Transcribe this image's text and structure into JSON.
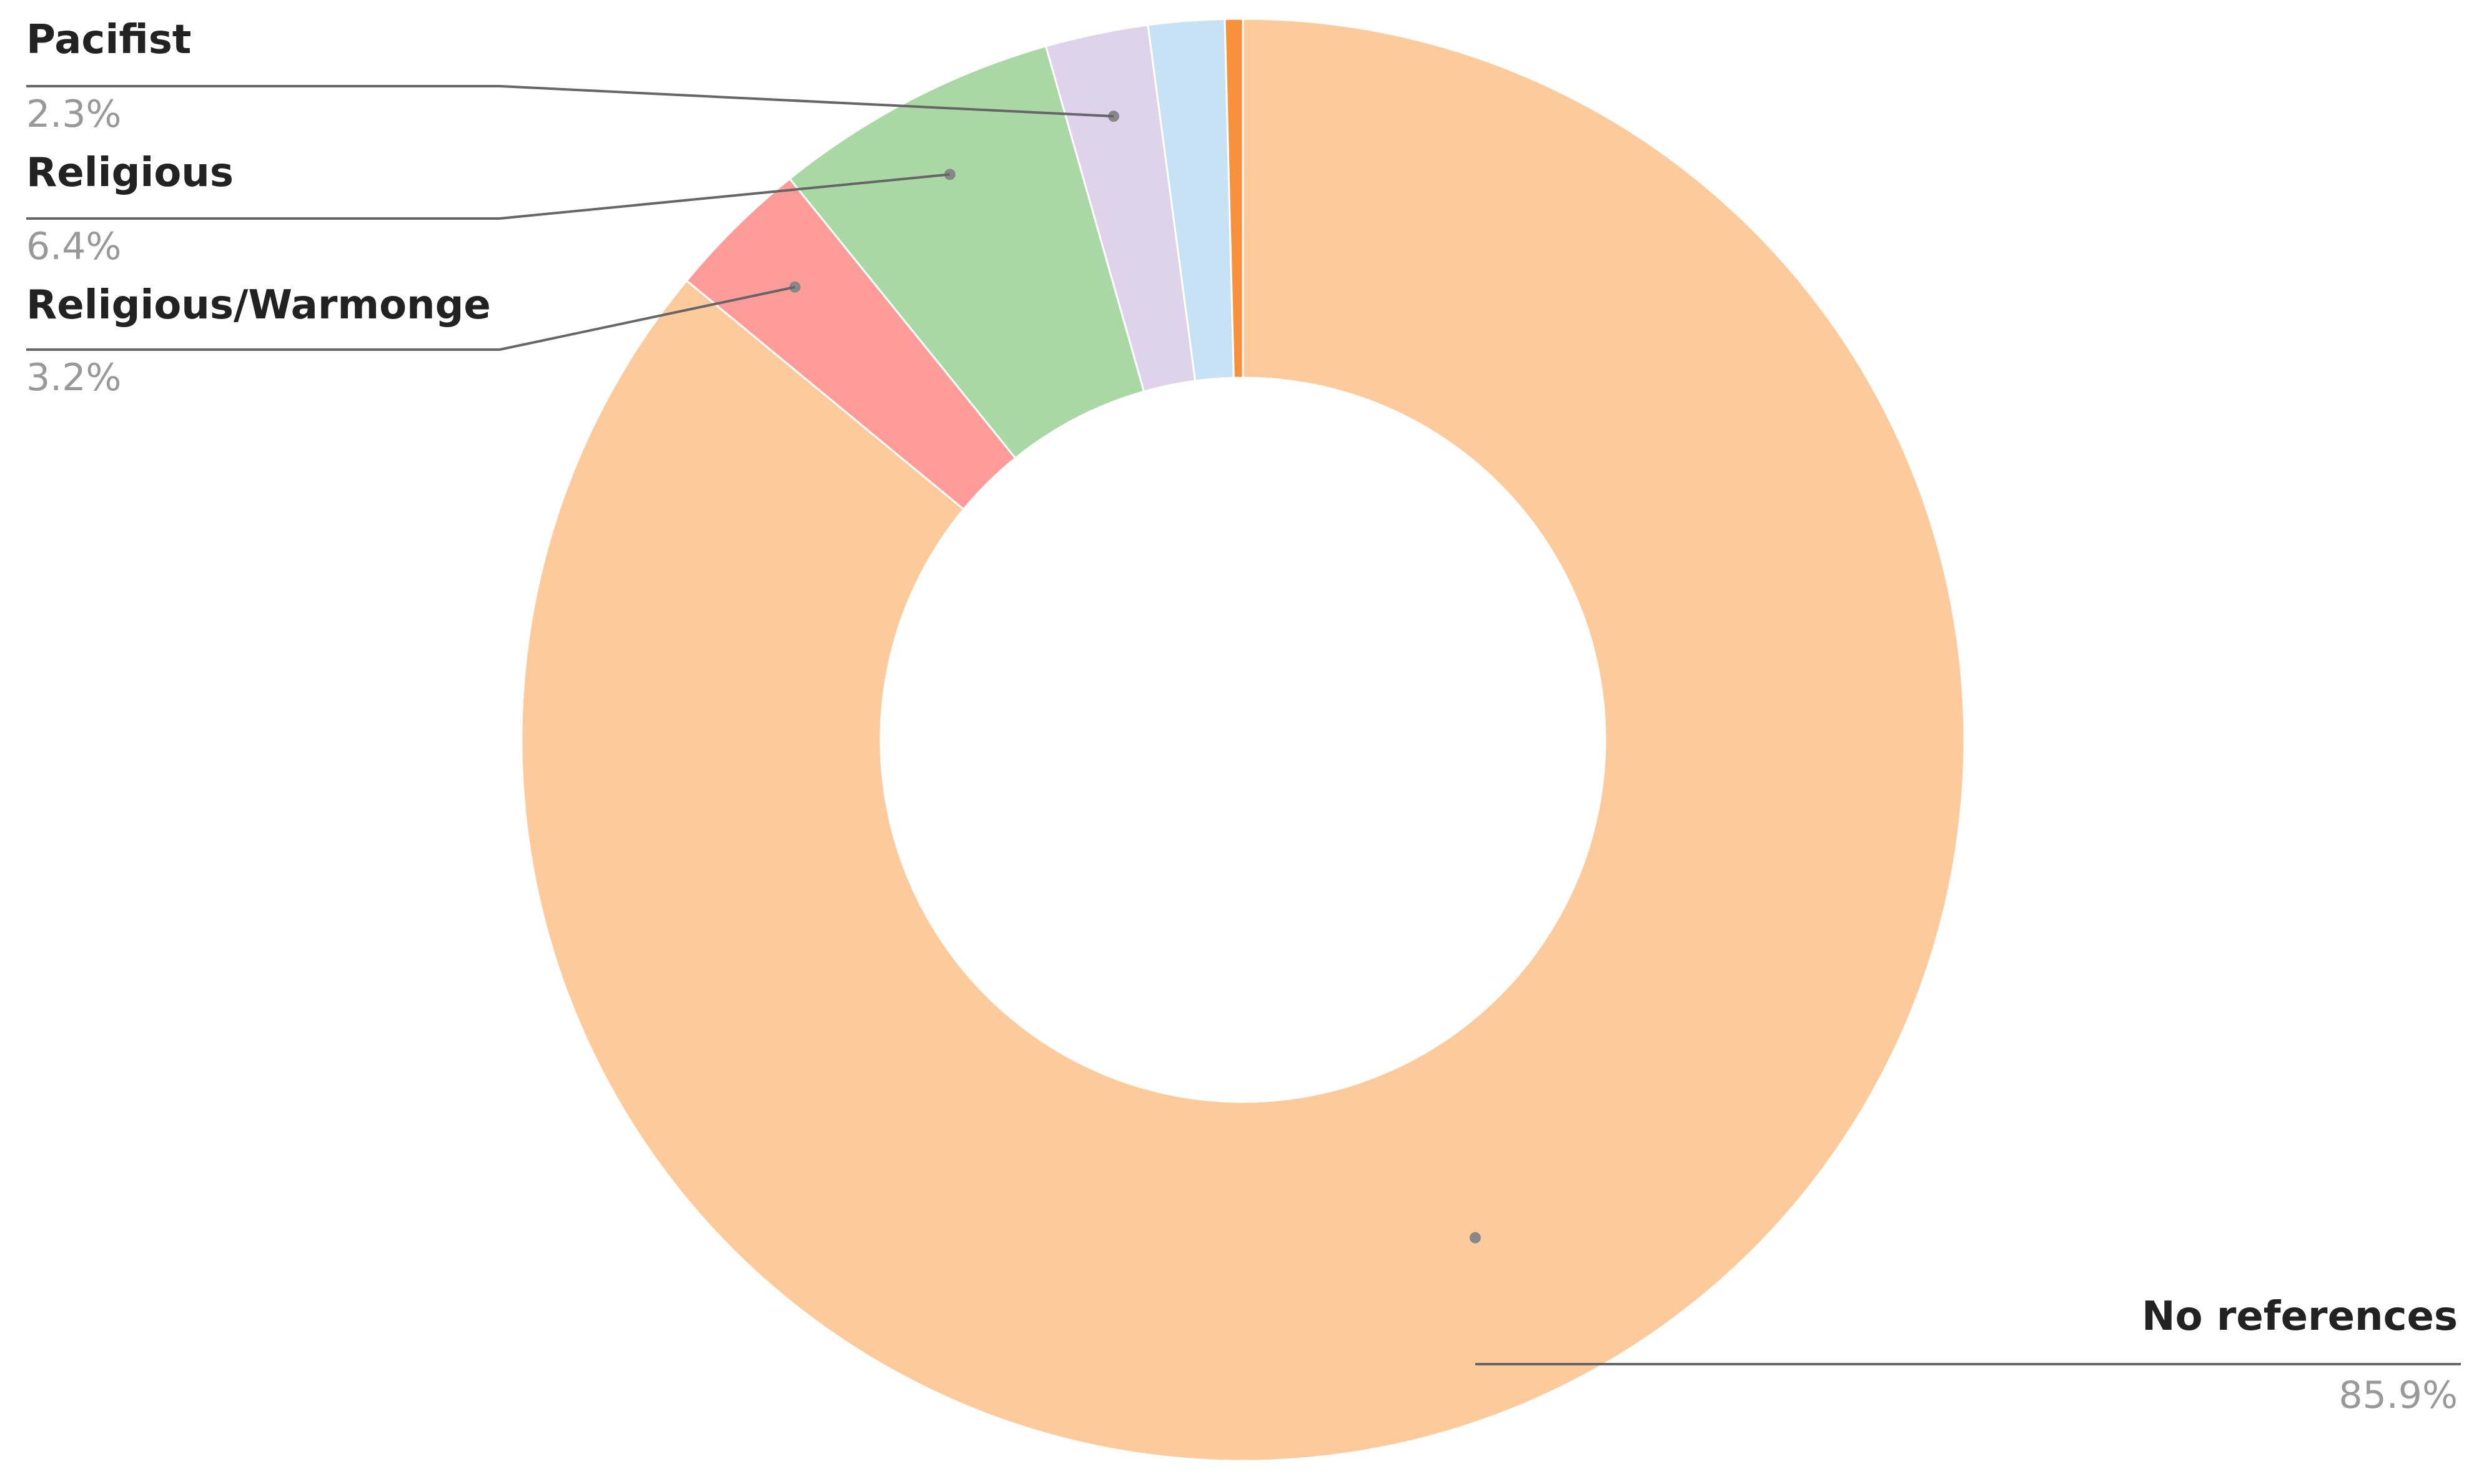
{
  "chart_data": {
    "type": "pie",
    "title": "",
    "donut": true,
    "legend": "none",
    "start_angle_deg": 0,
    "direction": "clockwise",
    "slices": [
      {
        "label": "No references",
        "value": 85.9,
        "display": "85.9%",
        "color": "#FDCA9B",
        "labeled": true,
        "label_side": "right"
      },
      {
        "label": "Religious/Warmonge",
        "value": 3.2,
        "display": "3.2%",
        "color": "#FF9B98",
        "labeled": true,
        "label_side": "left"
      },
      {
        "label": "Religious",
        "value": 6.4,
        "display": "6.4%",
        "color": "#A9D8A4",
        "labeled": true,
        "label_side": "left"
      },
      {
        "label": "Pacifist",
        "value": 2.3,
        "display": "2.3%",
        "color": "#DFD3EB",
        "labeled": true,
        "label_side": "left"
      },
      {
        "label": "",
        "value": 1.7,
        "display": "",
        "color": "#C7E2F5",
        "labeled": false
      },
      {
        "label": "",
        "value": 0.4,
        "display": "",
        "color": "#F7913B",
        "labeled": false
      }
    ]
  }
}
